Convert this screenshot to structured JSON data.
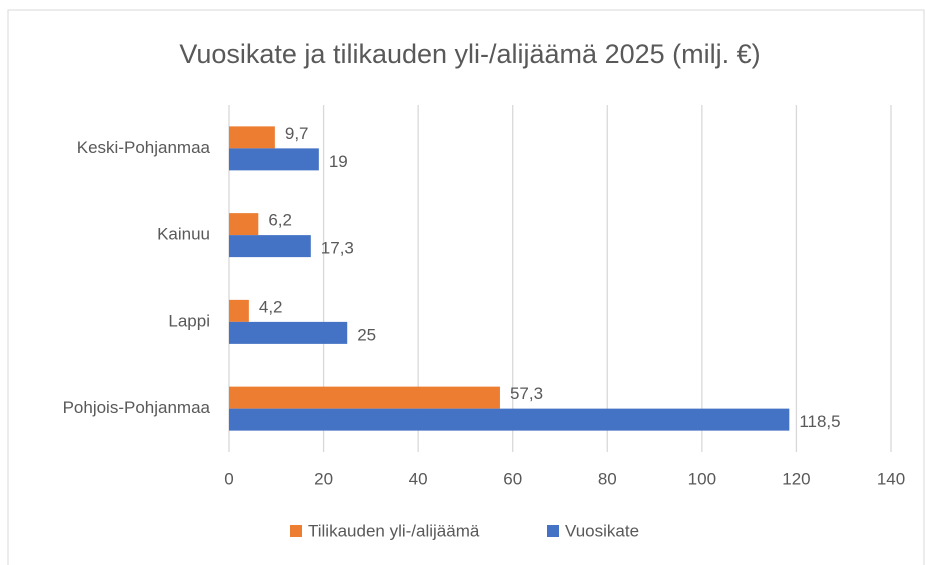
{
  "chart_data": {
    "type": "hbar",
    "title": "Vuosikate ja tilikauden yli-/alijäämä 2025 (milj. €)",
    "categories": [
      "Keski-Pohjanmaa",
      "Kainuu",
      "Lappi",
      "Pohjois-Pohjanmaa"
    ],
    "series": [
      {
        "name": "Tilikauden yli-/alijäämä",
        "color": "#ed7d31",
        "values": [
          9.7,
          6.2,
          4.2,
          57.3
        ],
        "value_labels": [
          "9,7",
          "6,2",
          "4,2",
          "57,3"
        ]
      },
      {
        "name": "Vuosikate",
        "color": "#4472c4",
        "values": [
          19,
          17.3,
          25,
          118.5
        ],
        "value_labels": [
          "19",
          "17,3",
          "25",
          "118,5"
        ]
      }
    ],
    "xlim": [
      0,
      140
    ],
    "xticks": [
      0,
      20,
      40,
      60,
      80,
      100,
      120,
      140
    ],
    "grid": true,
    "legend": "bottom"
  }
}
